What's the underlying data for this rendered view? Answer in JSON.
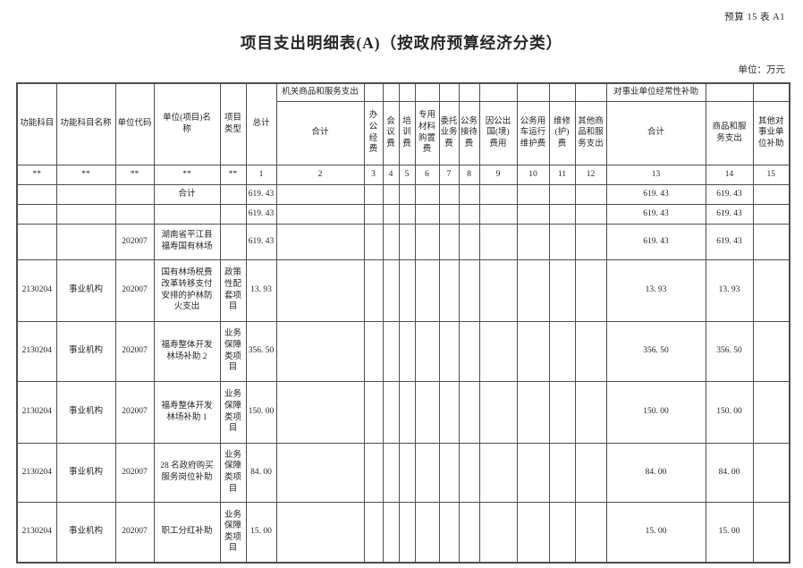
{
  "page": {
    "doc_ref": "预算 15 表 A1",
    "title": "项目支出明细表(A)（按政府预算经济分类）",
    "unit_note": "单位：万元"
  },
  "table": {
    "header": {
      "func_code": "功能科目",
      "func_name": "功能科目名称",
      "unit_code": "单位代码",
      "unit_project_name": "单位(项目)名\n称",
      "project_type": "项目\n类型",
      "grand_total": "总计",
      "org_goods_services_group": "机关商品和服务支出",
      "org_subtotal": "合计",
      "office_expense": "办\n公\n经\n费",
      "meeting_expense": "会\n议\n费",
      "training_expense": "培\n训\n费",
      "special_materials_expense": "专用\n材料\n购置\n费",
      "entrusted_business_expense": "委托\n业务\n费",
      "official_reception_expense": "公务\n接待\n费",
      "abroad_expense": "因公出\n国(境)\n费用",
      "official_vehicle_expense": "公务用\n车运行\n维护费",
      "repair_expense": "维修\n(护)\n费",
      "other_goods_services": "其他商\n品和服\n务支出",
      "institution_subsidy_group": "对事业单位经常性补助",
      "subsidy_subtotal": "合计",
      "subsidy_goods_services": "商品和服\n务支出",
      "other_institution_subsidy": "其他对\n事业单\n位补助"
    },
    "index_row": [
      "**",
      "**",
      "**",
      "**",
      "**",
      "1",
      "2",
      "3",
      "4",
      "5",
      "6",
      "7",
      "8",
      "9",
      "10",
      "11",
      "12",
      "13",
      "14",
      "15"
    ],
    "rows": [
      [
        "",
        "",
        "",
        "合计",
        "",
        "619. 43",
        "",
        "",
        "",
        "",
        "",
        "",
        "",
        "",
        "",
        "",
        "",
        "619. 43",
        "619. 43",
        ""
      ],
      [
        "",
        "",
        "",
        "",
        "",
        "619. 43",
        "",
        "",
        "",
        "",
        "",
        "",
        "",
        "",
        "",
        "",
        "",
        "619. 43",
        "619. 43",
        ""
      ],
      [
        "",
        "",
        "202007",
        "湖南省平江县\n福寿国有林场",
        "",
        "619. 43",
        "",
        "",
        "",
        "",
        "",
        "",
        "",
        "",
        "",
        "",
        "",
        "619. 43",
        "619. 43",
        ""
      ],
      [
        "2130204",
        "事业机构",
        "202007",
        "国有林场税费\n改革转移支付\n安排的护林防\n火支出",
        "政策\n性配\n套项\n目",
        "13. 93",
        "",
        "",
        "",
        "",
        "",
        "",
        "",
        "",
        "",
        "",
        "",
        "13. 93",
        "13. 93",
        ""
      ],
      [
        "2130204",
        "事业机构",
        "202007",
        "福寿整体开发\n林场补助 2",
        "业务\n保障\n类项\n目",
        "356. 50",
        "",
        "",
        "",
        "",
        "",
        "",
        "",
        "",
        "",
        "",
        "",
        "356. 50",
        "356. 50",
        ""
      ],
      [
        "2130204",
        "事业机构",
        "202007",
        "福寿整体开发\n林场补助 1",
        "业务\n保障\n类项\n目",
        "150. 00",
        "",
        "",
        "",
        "",
        "",
        "",
        "",
        "",
        "",
        "",
        "",
        "150. 00",
        "150. 00",
        ""
      ],
      [
        "2130204",
        "事业机构",
        "202007",
        "28 名政府购买\n服务岗位补助",
        "业务\n保障\n类项\n目",
        "84. 00",
        "",
        "",
        "",
        "",
        "",
        "",
        "",
        "",
        "",
        "",
        "",
        "84. 00",
        "84. 00",
        ""
      ],
      [
        "2130204",
        "事业机构",
        "202007",
        "职工分红补助",
        "业务\n保障\n类项\n目",
        "15. 00",
        "",
        "",
        "",
        "",
        "",
        "",
        "",
        "",
        "",
        "",
        "",
        "15. 00",
        "15. 00",
        ""
      ]
    ]
  }
}
